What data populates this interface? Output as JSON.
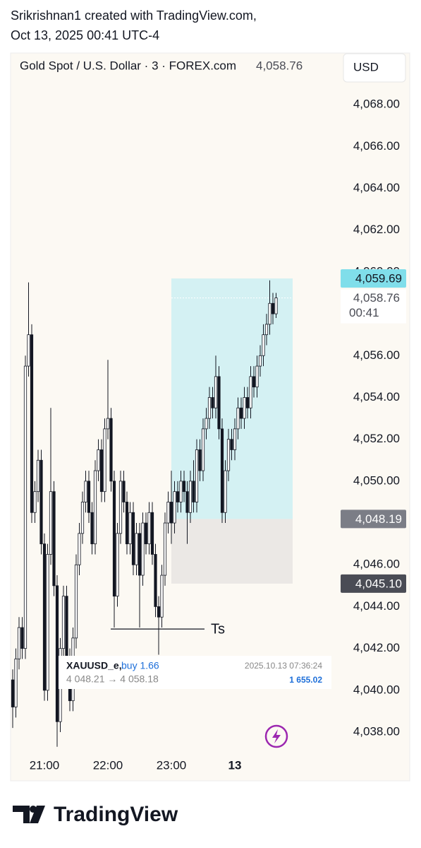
{
  "header": {
    "author_line": "Srikrishnan1 created with TradingView.com,",
    "date_line": "Oct 13, 2025 00:41 UTC-4"
  },
  "chart_data": {
    "type": "candlestick",
    "title": "Gold Spot / U.S. Dollar · 3 · FOREX.com",
    "last_price": {
      "value": 4058.76,
      "label": "4,058.76"
    },
    "currency": "USD",
    "countdown": "00:41",
    "up_color": "#ffffff",
    "down_color": "#131722",
    "categories": [
      null,
      null,
      null,
      null,
      null,
      null,
      null,
      null,
      null,
      null,
      "21:00",
      null,
      null,
      null,
      null,
      null,
      null,
      null,
      null,
      null,
      null,
      null,
      null,
      null,
      null,
      null,
      null,
      null,
      null,
      null,
      "22:00",
      null,
      null,
      null,
      null,
      null,
      null,
      null,
      null,
      null,
      null,
      null,
      null,
      null,
      null,
      null,
      null,
      null,
      null,
      null,
      "23:00",
      null,
      null,
      null,
      null,
      null,
      null,
      null,
      null,
      null,
      null,
      null,
      null,
      null,
      null,
      null,
      null,
      null,
      null,
      null,
      "13",
      null,
      null,
      null,
      null,
      null,
      null,
      null,
      null,
      null,
      null,
      null,
      null,
      null
    ],
    "open": [
      4040.5,
      4039.2,
      4041.5,
      4043.0,
      4042.0,
      4055.5,
      4057.0,
      4048.5,
      4049.5,
      4051.0,
      4047.0,
      4040.0,
      4046.5,
      4049.5,
      4045.0,
      4038.5,
      4042.0,
      4044.5,
      4041.5,
      4039.5,
      4042.5,
      4046.0,
      4047.5,
      4049.0,
      4050.0,
      4048.5,
      4047.0,
      4050.5,
      4051.5,
      4049.5,
      4052.5,
      4053.0,
      4050.0,
      4044.5,
      4047.5,
      4050.0,
      4049.0,
      4047.0,
      4048.5,
      4046.0,
      4047.5,
      4045.5,
      4048.0,
      4047.0,
      4048.5,
      4046.5,
      4044.0,
      4043.5,
      4045.5,
      4048.0,
      4049.0,
      4048.0,
      4049.5,
      4049.0,
      4050.0,
      4049.5,
      4048.5,
      4050.0,
      4049.0,
      4051.5,
      4050.5,
      4052.5,
      4053.0,
      4054.0,
      4053.5,
      4055.0,
      4052.5,
      4048.5,
      4050.5,
      4052.0,
      4051.5,
      4052.5,
      4053.5,
      4053.0,
      4054.0,
      4053.5,
      4055.0,
      4054.5,
      4055.5,
      4056.0,
      4057.0,
      4057.5,
      4058.5,
      4058.0
    ],
    "high": [
      4041.0,
      4042.0,
      4043.5,
      4043.5,
      4056.0,
      4059.5,
      4057.5,
      4050.0,
      4051.5,
      4051.5,
      4047.5,
      4047.0,
      4053.5,
      4050.0,
      4045.5,
      4042.5,
      4045.0,
      4045.0,
      4042.0,
      4043.0,
      4046.5,
      4048.0,
      4049.5,
      4050.5,
      4050.5,
      4049.0,
      4051.0,
      4052.0,
      4052.0,
      4053.0,
      4055.8,
      4053.5,
      4050.5,
      4048.0,
      4050.5,
      4050.5,
      4049.5,
      4049.0,
      4049.0,
      4048.0,
      4048.0,
      4048.5,
      4048.5,
      4049.0,
      4049.0,
      4047.0,
      4044.5,
      4046.0,
      4048.5,
      4049.5,
      4050.5,
      4050.0,
      4050.0,
      4050.5,
      4050.5,
      4050.0,
      4050.5,
      4051.0,
      4052.0,
      4052.0,
      4053.0,
      4053.5,
      4054.5,
      4054.5,
      4056.0,
      4055.5,
      4053.0,
      4051.0,
      4052.5,
      4052.5,
      4053.0,
      4054.0,
      4054.0,
      4054.5,
      4054.5,
      4055.5,
      4055.5,
      4056.0,
      4056.5,
      4057.5,
      4058.0,
      4059.6,
      4059.0,
      4059.0
    ],
    "low": [
      4038.2,
      4038.7,
      4041.0,
      4041.5,
      4041.5,
      4055.0,
      4048.0,
      4048.0,
      4049.0,
      4046.5,
      4039.5,
      4039.5,
      4046.0,
      4044.5,
      4037.3,
      4038.0,
      4041.5,
      4041.0,
      4039.0,
      4039.0,
      4042.0,
      4045.5,
      4047.0,
      4048.5,
      4048.0,
      4046.5,
      4046.5,
      4050.0,
      4049.0,
      4049.0,
      4052.0,
      4049.5,
      4043.0,
      4044.0,
      4047.0,
      4048.5,
      4046.5,
      4046.5,
      4045.5,
      4045.5,
      4043.0,
      4045.0,
      4046.5,
      4046.5,
      4046.0,
      4043.5,
      4041.7,
      4043.0,
      4045.0,
      4047.5,
      4047.0,
      4047.5,
      4048.5,
      4048.5,
      4049.0,
      4047.0,
      4048.0,
      4048.5,
      4048.5,
      4050.0,
      4050.0,
      4052.0,
      4052.5,
      4053.0,
      4053.0,
      4052.0,
      4048.0,
      4048.0,
      4050.0,
      4051.0,
      4051.0,
      4052.0,
      4052.5,
      4052.5,
      4053.0,
      4053.0,
      4054.0,
      4054.0,
      4055.0,
      4055.5,
      4056.5,
      4057.0,
      4057.5,
      4057.8
    ],
    "close": [
      4039.2,
      4041.5,
      4043.0,
      4042.0,
      4055.5,
      4057.0,
      4048.5,
      4049.5,
      4051.0,
      4047.0,
      4040.0,
      4046.5,
      4049.5,
      4045.0,
      4038.5,
      4042.0,
      4044.5,
      4041.5,
      4039.5,
      4042.5,
      4046.0,
      4047.5,
      4049.0,
      4050.0,
      4048.5,
      4047.0,
      4050.5,
      4051.5,
      4049.5,
      4052.5,
      4053.0,
      4050.0,
      4044.5,
      4047.5,
      4050.0,
      4049.0,
      4047.0,
      4048.5,
      4046.0,
      4047.5,
      4045.5,
      4048.0,
      4047.0,
      4048.5,
      4046.5,
      4044.0,
      4043.5,
      4045.5,
      4048.0,
      4049.0,
      4048.0,
      4049.5,
      4049.0,
      4050.0,
      4049.5,
      4048.5,
      4050.0,
      4049.0,
      4051.5,
      4050.5,
      4052.5,
      4053.0,
      4054.0,
      4053.5,
      4055.0,
      4052.5,
      4048.5,
      4050.5,
      4052.0,
      4051.5,
      4052.5,
      4053.5,
      4053.0,
      4054.0,
      4053.5,
      4055.0,
      4054.5,
      4055.5,
      4056.0,
      4057.0,
      4057.5,
      4058.5,
      4058.0,
      4058.76
    ],
    "ylim": [
      4036.92,
      4070.47
    ],
    "yticks": [
      {
        "value": 4038,
        "label": "4,038.00"
      },
      {
        "value": 4040,
        "label": "4,040.00"
      },
      {
        "value": 4042,
        "label": "4,042.00"
      },
      {
        "value": 4044,
        "label": "4,044.00"
      },
      {
        "value": 4046,
        "label": "4,046.00"
      },
      {
        "value": 4048,
        "label": "4,048.00"
      },
      {
        "value": 4050,
        "label": "4,050.00"
      },
      {
        "value": 4052,
        "label": "4,052.00"
      },
      {
        "value": 4054,
        "label": "4,054.00"
      },
      {
        "value": 4056,
        "label": "4,056.00"
      },
      {
        "value": 4058,
        "label": "4,058.00"
      },
      {
        "value": 4060,
        "label": "4,060.00"
      },
      {
        "value": 4062,
        "label": "4,062.00"
      },
      {
        "value": 4064,
        "label": "4,064.00"
      },
      {
        "value": 4066,
        "label": "4,066.00"
      },
      {
        "value": 4068,
        "label": "4,068.00"
      }
    ],
    "position": {
      "target": {
        "value": 4059.69,
        "label": "4,059.69",
        "color": "#80deea"
      },
      "entry": {
        "value": 4048.19,
        "label": "4,048.19",
        "color": "#7b7d86"
      },
      "stop": {
        "value": 4045.1,
        "label": "4,045.10",
        "color": "#4a4c55"
      }
    },
    "annotation": {
      "text": "Ts",
      "value": 4042.93
    }
  },
  "trade_note": {
    "symbol": "XAUUSD_e,",
    "side": "buy 1.66",
    "time": "2025.10.13 07:36:24",
    "prices": "4 048.21 → 4 058.18",
    "profit": "1 655.02"
  },
  "footer": {
    "brand": "TradingView"
  }
}
